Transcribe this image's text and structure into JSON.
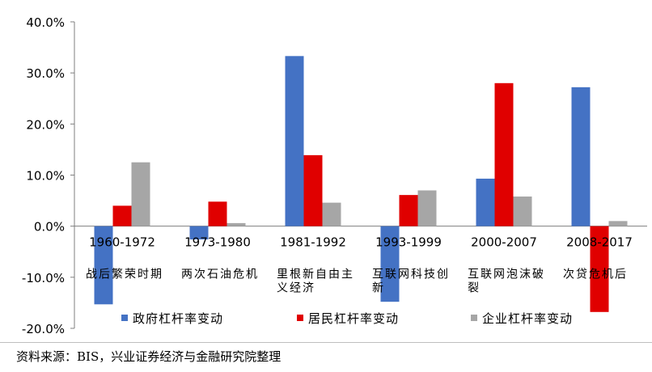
{
  "chart_data": {
    "type": "bar",
    "categories": [
      "1960-1972",
      "1973-1980",
      "1981-1992",
      "1993-1999",
      "2000-2007",
      "2008-2017"
    ],
    "category_notes": [
      "战后繁荣时期",
      "两次石油危机",
      "里根新自由主义经济",
      "互联网科技创新",
      "互联网泡沫破裂",
      "次贷危机后"
    ],
    "series": [
      {
        "name": "政府杠杆率变动",
        "color": "#4472c4",
        "values": [
          -15.3,
          -2.6,
          33.3,
          -14.8,
          9.3,
          27.2
        ]
      },
      {
        "name": "居民杠杆率变动",
        "color": "#e00000",
        "values": [
          4.0,
          4.8,
          13.9,
          6.1,
          28.0,
          -16.8
        ]
      },
      {
        "name": "企业杠杆率变动",
        "color": "#a6a6a6",
        "values": [
          12.5,
          0.6,
          4.6,
          7.0,
          5.8,
          1.0
        ]
      }
    ],
    "ylim": [
      -20,
      40
    ],
    "yticks": [
      "40.0%",
      "30.0%",
      "20.0%",
      "10.0%",
      "0.0%",
      "-10.0%",
      "-20.0%"
    ],
    "title": "",
    "xlabel": "",
    "ylabel": "",
    "legend_position": "bottom"
  },
  "source": "资料来源：BIS，兴业证券经济与金融研究院整理"
}
